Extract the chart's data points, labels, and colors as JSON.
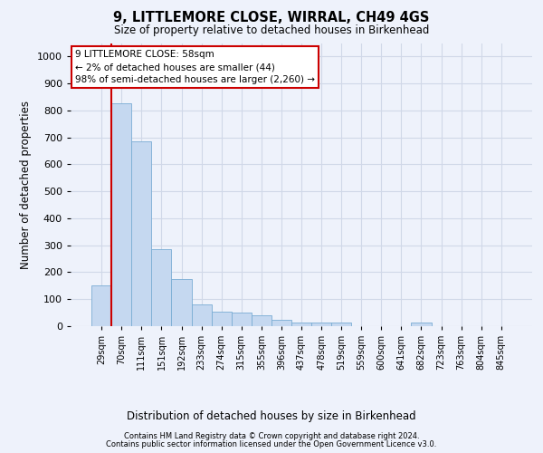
{
  "title": "9, LITTLEMORE CLOSE, WIRRAL, CH49 4GS",
  "subtitle": "Size of property relative to detached houses in Birkenhead",
  "xlabel": "Distribution of detached houses by size in Birkenhead",
  "ylabel": "Number of detached properties",
  "bar_color": "#c5d8f0",
  "bar_edge_color": "#7aadd4",
  "categories": [
    "29sqm",
    "70sqm",
    "111sqm",
    "151sqm",
    "192sqm",
    "233sqm",
    "274sqm",
    "315sqm",
    "355sqm",
    "396sqm",
    "437sqm",
    "478sqm",
    "519sqm",
    "559sqm",
    "600sqm",
    "641sqm",
    "682sqm",
    "723sqm",
    "763sqm",
    "804sqm",
    "845sqm"
  ],
  "values": [
    150,
    825,
    685,
    285,
    175,
    80,
    55,
    50,
    42,
    22,
    15,
    12,
    12,
    0,
    0,
    0,
    12,
    0,
    0,
    0,
    0
  ],
  "ylim": [
    0,
    1050
  ],
  "yticks": [
    0,
    100,
    200,
    300,
    400,
    500,
    600,
    700,
    800,
    900,
    1000
  ],
  "annotation_box_text": "9 LITTLEMORE CLOSE: 58sqm\n← 2% of detached houses are smaller (44)\n98% of semi-detached houses are larger (2,260) →",
  "annotation_box_color": "#ffffff",
  "annotation_box_edge_color": "#cc0000",
  "vline_color": "#cc0000",
  "footnote1": "Contains HM Land Registry data © Crown copyright and database right 2024.",
  "footnote2": "Contains public sector information licensed under the Open Government Licence v3.0.",
  "background_color": "#eef2fb",
  "grid_color": "#d0d8e8"
}
